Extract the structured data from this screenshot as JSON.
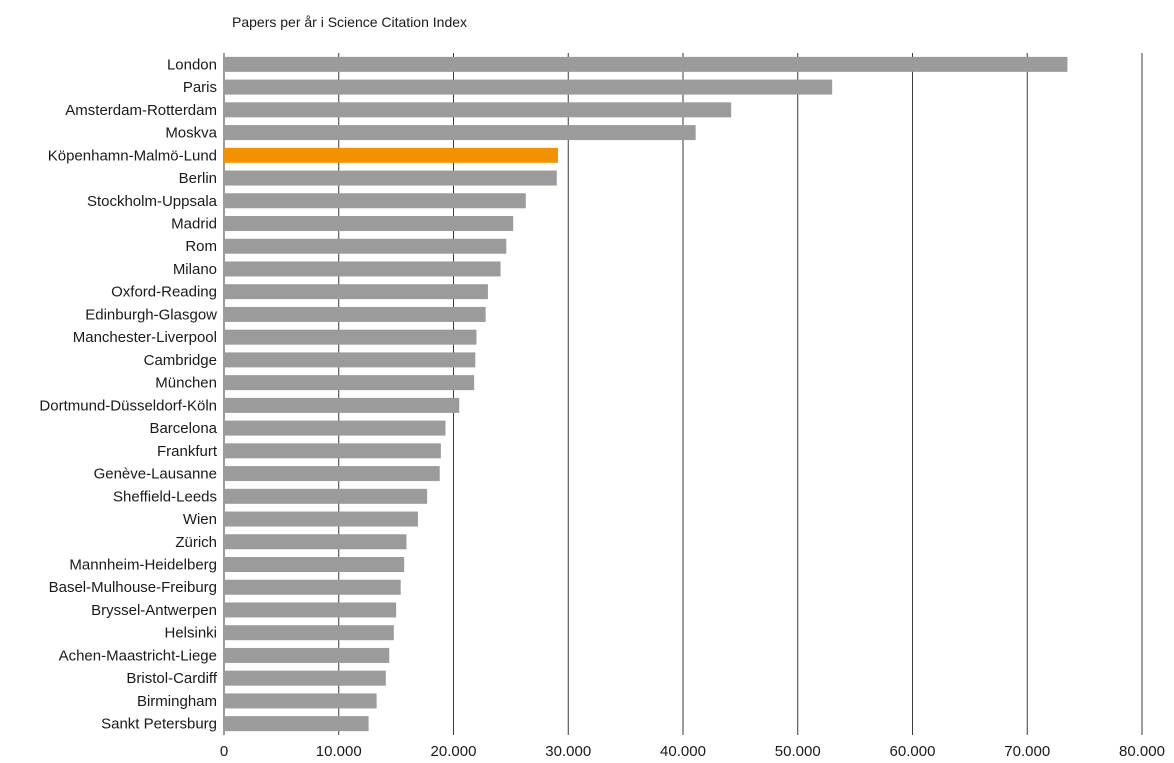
{
  "chart_data": {
    "type": "bar",
    "orientation": "horizontal",
    "title": "Papers per år i Science Citation Index",
    "categories": [
      "London",
      "Paris",
      "Amsterdam-Rotterdam",
      "Moskva",
      "Köpenhamn-Malmö-Lund",
      "Berlin",
      "Stockholm-Uppsala",
      "Madrid",
      "Rom",
      "Milano",
      "Oxford-Reading",
      "Edinburgh-Glasgow",
      "Manchester-Liverpool",
      "Cambridge",
      "München",
      "Dortmund-Düsseldorf-Köln",
      "Barcelona",
      "Frankfurt",
      "Genève-Lausanne",
      "Sheffield-Leeds",
      "Wien",
      "Zürich",
      "Mannheim-Heidelberg",
      "Basel-Mulhouse-Freiburg",
      "Bryssel-Antwerpen",
      "Helsinki",
      "Achen-Maastricht-Liege",
      "Bristol-Cardiff",
      "Birmingham",
      "Sankt Petersburg"
    ],
    "values": [
      73500,
      53000,
      44200,
      41100,
      29100,
      29000,
      26300,
      25200,
      24600,
      24100,
      23000,
      22800,
      22000,
      21900,
      21800,
      20500,
      19300,
      18900,
      18800,
      17700,
      16900,
      15900,
      15700,
      15400,
      15000,
      14800,
      14400,
      14100,
      13300,
      12600
    ],
    "highlight": "Köpenhamn-Malmö-Lund",
    "xlim": [
      0,
      80000
    ],
    "xticks": [
      "0",
      "10.000",
      "20.000",
      "30.000",
      "40.000",
      "50.000",
      "60.000",
      "70.000",
      "80.000"
    ],
    "grid": "vertical",
    "colors": {
      "bar": "#9b9b9b",
      "highlight": "#f39200",
      "grid": "#3a3a3a",
      "text": "#1a1a1a"
    }
  }
}
